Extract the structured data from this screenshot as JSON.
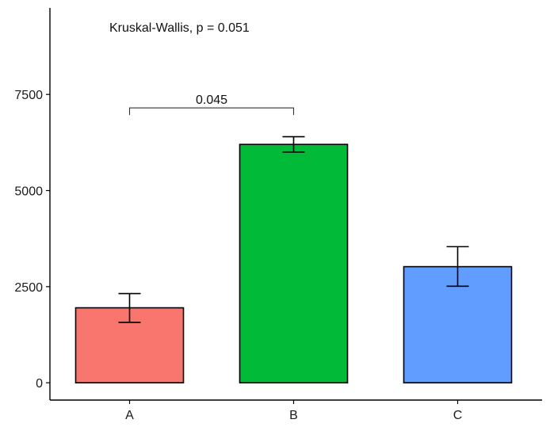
{
  "chart_data": {
    "type": "bar",
    "title": "",
    "xlabel": "",
    "ylabel": "",
    "categories": [
      "A",
      "B",
      "C"
    ],
    "values": [
      1950,
      6200,
      3020
    ],
    "error_bars": {
      "lower": [
        1570,
        6000,
        2510
      ],
      "upper": [
        2320,
        6400,
        3540
      ]
    },
    "colors": [
      "#F8766D",
      "#00BA38",
      "#619CFF"
    ],
    "ylim": [
      -450,
      9750
    ],
    "yticks": [
      0,
      2500,
      5000,
      7500
    ],
    "ytick_labels": [
      "0",
      "2500",
      "5000",
      "7500"
    ],
    "grid": false,
    "legend": "none",
    "annotations": {
      "test_label": "Kruskal-Wallis, p = 0.051",
      "comparison": {
        "groups": [
          "A",
          "B"
        ],
        "label": "0.045",
        "y": 7150
      }
    }
  }
}
